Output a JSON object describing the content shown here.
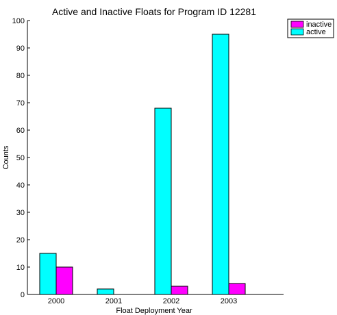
{
  "chart_data": {
    "type": "bar",
    "title": "Active and Inactive Floats for Program ID 12281",
    "xlabel": "Float Deployment Year",
    "ylabel": "Counts",
    "categories": [
      "2000",
      "2001",
      "2002",
      "2003"
    ],
    "series": [
      {
        "name": "active",
        "color": "#00ffff",
        "values": [
          15,
          2,
          68,
          95
        ]
      },
      {
        "name": "inactive",
        "color": "#ff00ff",
        "values": [
          10,
          0,
          3,
          4
        ]
      }
    ],
    "legend_order": [
      "inactive",
      "active"
    ],
    "ylim": [
      0,
      100
    ],
    "yticks": [
      0,
      10,
      20,
      30,
      40,
      50,
      60,
      70,
      80,
      90,
      100
    ],
    "legend_position": "top-right",
    "grid": false
  }
}
